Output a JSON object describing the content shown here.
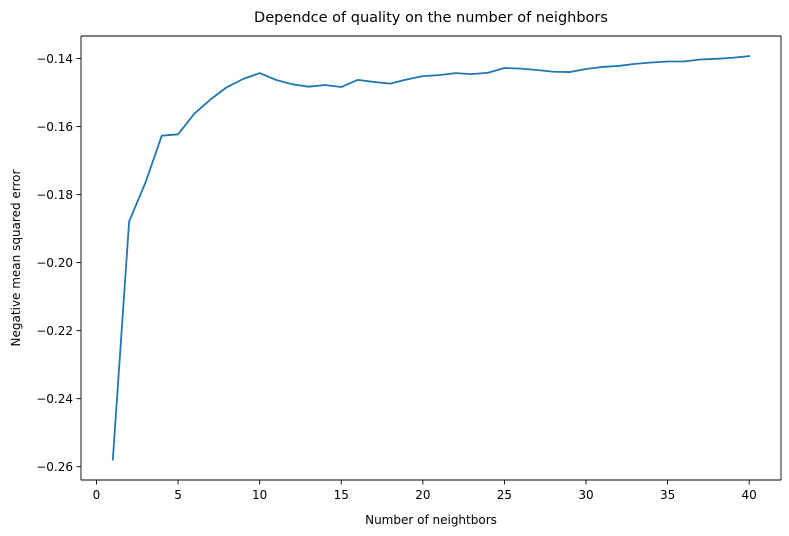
{
  "chart_data": {
    "type": "line",
    "title": "Dependce of quality on the number of neighbors",
    "xlabel": "Number of neightbors",
    "ylabel": "Negative mean squared error",
    "xlim": [
      -0.95,
      41.95
    ],
    "ylim": [
      -0.2639,
      -0.1334
    ],
    "x_ticks": [
      0,
      5,
      10,
      15,
      20,
      25,
      30,
      35,
      40
    ],
    "x_tick_labels": [
      "0",
      "5",
      "10",
      "15",
      "20",
      "25",
      "30",
      "35",
      "40"
    ],
    "y_ticks": [
      -0.26,
      -0.24,
      -0.22,
      -0.2,
      -0.18,
      -0.16,
      -0.14
    ],
    "y_tick_labels": [
      "−0.26",
      "−0.24",
      "−0.22",
      "−0.20",
      "−0.18",
      "−0.16",
      "−0.14"
    ],
    "grid": false,
    "line_color": "#1f77b4",
    "series": [
      {
        "x": [
          1,
          2,
          3,
          4,
          5,
          6,
          7,
          8,
          9,
          10,
          11,
          12,
          13,
          14,
          15,
          16,
          17,
          18,
          19,
          20,
          21,
          22,
          23,
          24,
          25,
          26,
          27,
          28,
          29,
          30,
          31,
          32,
          33,
          34,
          35,
          36,
          37,
          38,
          39,
          40
        ],
        "values": [
          -0.2579,
          -0.1879,
          -0.1765,
          -0.1627,
          -0.1623,
          -0.1562,
          -0.152,
          -0.1484,
          -0.146,
          -0.1443,
          -0.1463,
          -0.1476,
          -0.1483,
          -0.1478,
          -0.1484,
          -0.1463,
          -0.1469,
          -0.1474,
          -0.1462,
          -0.1452,
          -0.1449,
          -0.1443,
          -0.1446,
          -0.1442,
          -0.1428,
          -0.143,
          -0.1434,
          -0.1439,
          -0.144,
          -0.1431,
          -0.1425,
          -0.1422,
          -0.1416,
          -0.1412,
          -0.1409,
          -0.1409,
          -0.1403,
          -0.1401,
          -0.1398,
          -0.1393
        ]
      }
    ]
  }
}
